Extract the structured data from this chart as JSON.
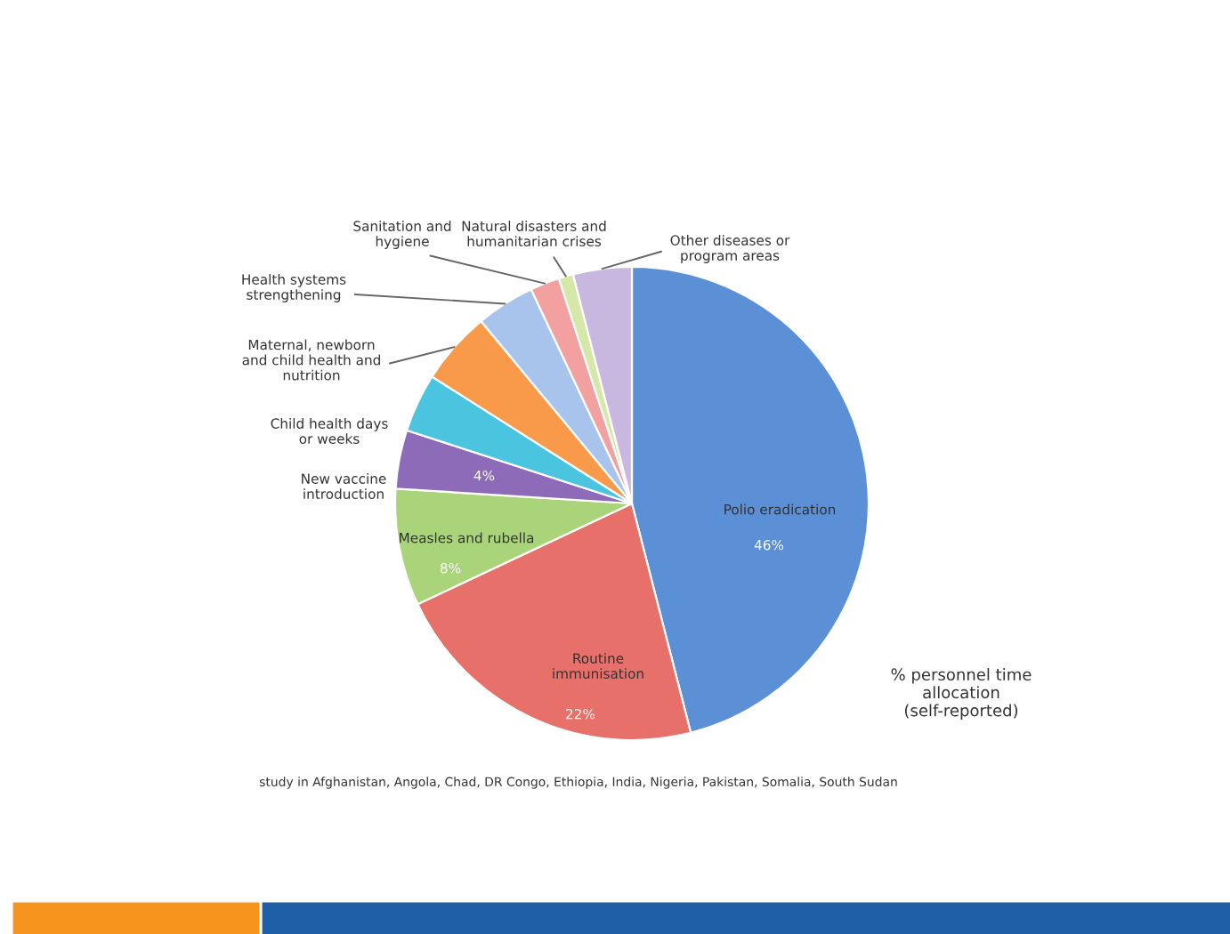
{
  "chart_data": {
    "type": "pie",
    "categories": [
      "Polio eradication",
      "Routine\nimmunisation",
      "Measles and rubella",
      "New vaccine\nintroduction",
      "Child health days\nor weeks",
      "Maternal, newborn\nand child health and\nnutrition",
      "Health systems\nstrengthening",
      "Sanitation and\nhygiene",
      "Natural disasters and\nhumanitarian crises",
      "Other diseases or\nprogram areas"
    ],
    "values": [
      46,
      22,
      8,
      4,
      4,
      5,
      4,
      2,
      1,
      4
    ],
    "value_labels": [
      "46%",
      "22%",
      "8%",
      "4%",
      null,
      null,
      null,
      null,
      null,
      null
    ],
    "colors": [
      "#5b8fd6",
      "#e8706a",
      "#a9d47a",
      "#8e6bb8",
      "#4bc4e0",
      "#f89a4a",
      "#a8c4ec",
      "#f2a0a0",
      "#d6e8a8",
      "#c8b8e0"
    ],
    "annotations": [
      "% personnel time\nallocation\n(self-reported)",
      "study in Afghanistan, Angola, Chad, DR Congo, Ethiopia, India, Nigeria, Pakistan, Somalia, South Sudan"
    ]
  }
}
